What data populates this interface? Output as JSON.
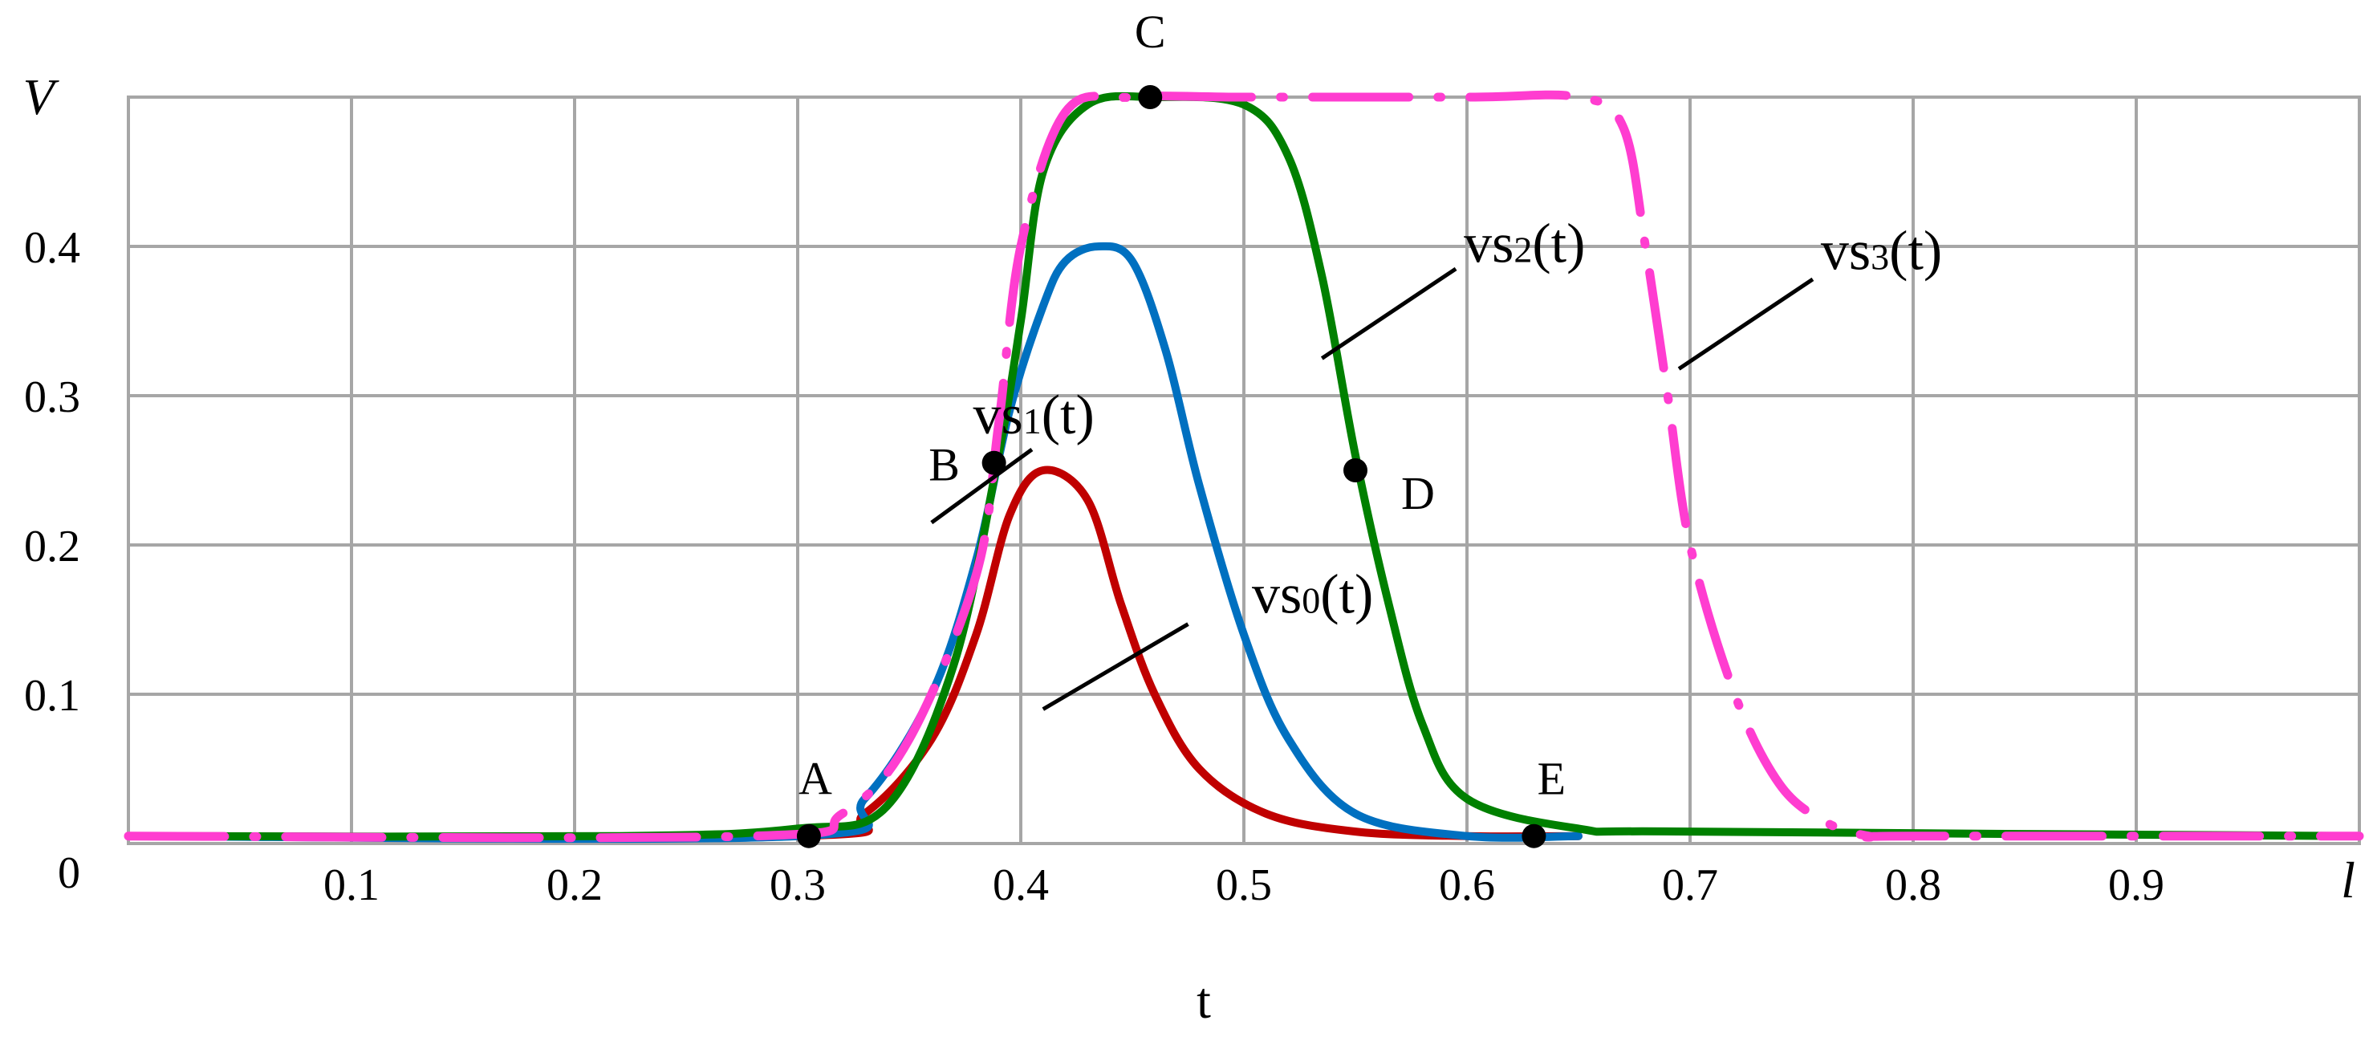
{
  "chart_data": {
    "type": "line",
    "title": "",
    "xlabel": "t",
    "ylabel": "V",
    "x_end_label": "l",
    "xlim": [
      0,
      1
    ],
    "ylim": [
      0,
      0.5
    ],
    "grid": true,
    "x_ticks": [
      "0.1",
      "0.2",
      "0.3",
      "0.4",
      "0.5",
      "0.6",
      "0.7",
      "0.8",
      "0.9"
    ],
    "x_tick_values": [
      0.1,
      0.2,
      0.3,
      0.4,
      0.5,
      0.6,
      0.7,
      0.8,
      0.9
    ],
    "y_ticks": [
      "0",
      "0.1",
      "0.2",
      "0.3",
      "0.4"
    ],
    "y_tick_values": [
      0,
      0.1,
      0.2,
      0.3,
      0.4
    ],
    "series": [
      {
        "name": "vs0(t)",
        "label_main": "vs",
        "label_sub": "0",
        "label_tail": "(t)",
        "color": "#c00000",
        "style": "solid",
        "x": [
          0.0,
          0.3,
          0.33,
          0.36,
          0.38,
          0.395,
          0.41,
          0.43,
          0.445,
          0.46,
          0.48,
          0.51,
          0.55,
          0.6,
          0.65
        ],
        "y": [
          0.005,
          0.005,
          0.02,
          0.07,
          0.14,
          0.22,
          0.25,
          0.23,
          0.16,
          0.1,
          0.05,
          0.02,
          0.008,
          0.005,
          0.005
        ]
      },
      {
        "name": "vs1(t)",
        "label_main": "vs",
        "label_sub": "1",
        "label_tail": "(t)",
        "color": "#0070c0",
        "style": "solid",
        "x": [
          0.0,
          0.3,
          0.33,
          0.36,
          0.38,
          0.395,
          0.41,
          0.42,
          0.435,
          0.45,
          0.465,
          0.48,
          0.5,
          0.52,
          0.55,
          0.6,
          0.65
        ],
        "y": [
          0.005,
          0.005,
          0.03,
          0.1,
          0.19,
          0.29,
          0.36,
          0.39,
          0.4,
          0.39,
          0.33,
          0.24,
          0.14,
          0.07,
          0.02,
          0.005,
          0.005
        ]
      },
      {
        "name": "vs2(t)",
        "label_main": "vs",
        "label_sub": "2",
        "label_tail": "(t)",
        "color": "#008000",
        "style": "solid",
        "x": [
          0.0,
          0.22,
          0.3,
          0.34,
          0.37,
          0.39,
          0.4,
          0.41,
          0.43,
          0.46,
          0.5,
          0.52,
          0.535,
          0.55,
          0.565,
          0.58,
          0.6,
          0.65,
          0.7,
          1.0
        ],
        "y": [
          0.005,
          0.005,
          0.01,
          0.025,
          0.12,
          0.26,
          0.35,
          0.45,
          0.495,
          0.5,
          0.495,
          0.46,
          0.38,
          0.26,
          0.16,
          0.08,
          0.03,
          0.01,
          0.008,
          0.005
        ]
      },
      {
        "name": "vs3(t)",
        "label_main": "vs",
        "label_sub": "3",
        "label_tail": "(t)",
        "color": "#ff3dd0",
        "style": "dashdot",
        "x": [
          0.0,
          0.28,
          0.32,
          0.35,
          0.38,
          0.39,
          0.4,
          0.42,
          0.45,
          0.5,
          0.6,
          0.65,
          0.67,
          0.68,
          0.69,
          0.7,
          0.72,
          0.74,
          0.76,
          0.78,
          0.8,
          1.0
        ],
        "y": [
          0.005,
          0.005,
          0.02,
          0.07,
          0.18,
          0.28,
          0.4,
          0.49,
          0.5,
          0.5,
          0.5,
          0.5,
          0.48,
          0.4,
          0.3,
          0.2,
          0.1,
          0.04,
          0.015,
          0.005,
          0.005,
          0.005
        ]
      }
    ],
    "points": [
      {
        "label": "A",
        "x": 0.305,
        "y": 0.005
      },
      {
        "label": "B",
        "x": 0.388,
        "y": 0.255
      },
      {
        "label": "C",
        "x": 0.458,
        "y": 0.5
      },
      {
        "label": "D",
        "x": 0.55,
        "y": 0.25
      },
      {
        "label": "E",
        "x": 0.63,
        "y": 0.005
      }
    ]
  }
}
